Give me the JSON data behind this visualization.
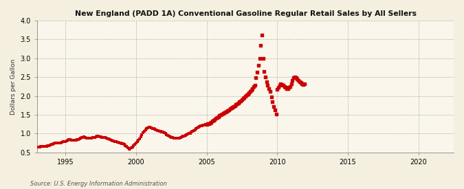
{
  "title": "New England (PADD 1A) Conventional Gasoline Regular Retail Sales by All Sellers",
  "ylabel": "Dollars per Gallon",
  "source": "Source: U.S. Energy Information Administration",
  "background_color": "#F5EFE0",
  "plot_bg_color": "#FAF6EC",
  "line_color": "#CC0000",
  "marker": "s",
  "marker_size": 2.2,
  "ylim": [
    0.5,
    4.0
  ],
  "yticks": [
    0.5,
    1.0,
    1.5,
    2.0,
    2.5,
    3.0,
    3.5,
    4.0
  ],
  "xlim_start": 1993.0,
  "xlim_end": 2022.5,
  "xticks": [
    1995,
    2000,
    2005,
    2010,
    2015,
    2020
  ],
  "connected_data": [
    [
      1993.08,
      0.637
    ],
    [
      1993.17,
      0.648
    ],
    [
      1993.25,
      0.652
    ],
    [
      1993.33,
      0.655
    ],
    [
      1993.42,
      0.658
    ],
    [
      1993.5,
      0.662
    ],
    [
      1993.58,
      0.66
    ],
    [
      1993.67,
      0.665
    ],
    [
      1993.75,
      0.672
    ],
    [
      1993.83,
      0.682
    ],
    [
      1993.92,
      0.695
    ],
    [
      1994.0,
      0.705
    ],
    [
      1994.08,
      0.718
    ],
    [
      1994.17,
      0.728
    ],
    [
      1994.25,
      0.742
    ],
    [
      1994.33,
      0.752
    ],
    [
      1994.42,
      0.748
    ],
    [
      1994.5,
      0.745
    ],
    [
      1994.58,
      0.748
    ],
    [
      1994.67,
      0.755
    ],
    [
      1994.75,
      0.768
    ],
    [
      1994.83,
      0.778
    ],
    [
      1994.92,
      0.788
    ],
    [
      1995.0,
      0.795
    ],
    [
      1995.08,
      0.808
    ],
    [
      1995.17,
      0.822
    ],
    [
      1995.25,
      0.838
    ],
    [
      1995.33,
      0.842
    ],
    [
      1995.42,
      0.832
    ],
    [
      1995.5,
      0.822
    ],
    [
      1995.58,
      0.818
    ],
    [
      1995.67,
      0.82
    ],
    [
      1995.75,
      0.828
    ],
    [
      1995.83,
      0.838
    ],
    [
      1995.92,
      0.848
    ],
    [
      1996.0,
      0.858
    ],
    [
      1996.08,
      0.872
    ],
    [
      1996.17,
      0.888
    ],
    [
      1996.25,
      0.902
    ],
    [
      1996.33,
      0.908
    ],
    [
      1996.42,
      0.898
    ],
    [
      1996.5,
      0.885
    ],
    [
      1996.58,
      0.878
    ],
    [
      1996.67,
      0.875
    ],
    [
      1996.75,
      0.878
    ],
    [
      1996.83,
      0.885
    ],
    [
      1996.92,
      0.892
    ],
    [
      1997.0,
      0.898
    ],
    [
      1997.08,
      0.905
    ],
    [
      1997.17,
      0.915
    ],
    [
      1997.25,
      0.928
    ],
    [
      1997.33,
      0.932
    ],
    [
      1997.42,
      0.922
    ],
    [
      1997.5,
      0.912
    ],
    [
      1997.58,
      0.905
    ],
    [
      1997.67,
      0.9
    ],
    [
      1997.75,
      0.895
    ],
    [
      1997.83,
      0.888
    ],
    [
      1997.92,
      0.878
    ],
    [
      1998.0,
      0.868
    ],
    [
      1998.08,
      0.852
    ],
    [
      1998.17,
      0.835
    ],
    [
      1998.25,
      0.822
    ],
    [
      1998.33,
      0.81
    ],
    [
      1998.42,
      0.798
    ],
    [
      1998.5,
      0.785
    ],
    [
      1998.58,
      0.778
    ],
    [
      1998.67,
      0.772
    ],
    [
      1998.75,
      0.765
    ],
    [
      1998.83,
      0.758
    ],
    [
      1998.92,
      0.748
    ],
    [
      1999.0,
      0.738
    ],
    [
      1999.08,
      0.725
    ],
    [
      1999.17,
      0.708
    ],
    [
      1999.25,
      0.682
    ],
    [
      1999.33,
      0.652
    ],
    [
      1999.42,
      0.618
    ],
    [
      1999.5,
      0.595
    ],
    [
      1999.58,
      0.6
    ],
    [
      1999.67,
      0.622
    ],
    [
      1999.75,
      0.648
    ],
    [
      1999.83,
      0.678
    ],
    [
      1999.92,
      0.712
    ],
    [
      2000.0,
      0.748
    ],
    [
      2000.08,
      0.785
    ],
    [
      2000.17,
      0.825
    ],
    [
      2000.25,
      0.868
    ],
    [
      2000.33,
      0.912
    ],
    [
      2000.42,
      0.962
    ],
    [
      2000.5,
      1.018
    ],
    [
      2000.58,
      1.062
    ],
    [
      2000.67,
      1.098
    ],
    [
      2000.75,
      1.128
    ],
    [
      2000.83,
      1.15
    ],
    [
      2000.92,
      1.165
    ],
    [
      2001.0,
      1.172
    ],
    [
      2001.08,
      1.158
    ],
    [
      2001.17,
      1.142
    ],
    [
      2001.25,
      1.125
    ],
    [
      2001.33,
      1.108
    ],
    [
      2001.42,
      1.095
    ],
    [
      2001.5,
      1.082
    ],
    [
      2001.58,
      1.072
    ],
    [
      2001.67,
      1.065
    ],
    [
      2001.75,
      1.058
    ],
    [
      2001.83,
      1.05
    ],
    [
      2001.92,
      1.038
    ],
    [
      2002.0,
      1.022
    ],
    [
      2002.08,
      1.002
    ],
    [
      2002.17,
      0.978
    ],
    [
      2002.25,
      0.952
    ],
    [
      2002.33,
      0.928
    ],
    [
      2002.42,
      0.912
    ],
    [
      2002.5,
      0.898
    ],
    [
      2002.58,
      0.888
    ],
    [
      2002.67,
      0.88
    ],
    [
      2002.75,
      0.875
    ],
    [
      2002.83,
      0.872
    ],
    [
      2002.92,
      0.87
    ],
    [
      2003.0,
      0.872
    ],
    [
      2003.08,
      0.88
    ],
    [
      2003.17,
      0.892
    ],
    [
      2003.25,
      0.908
    ],
    [
      2003.33,
      0.925
    ],
    [
      2003.42,
      0.94
    ],
    [
      2003.5,
      0.952
    ],
    [
      2003.58,
      0.965
    ],
    [
      2003.67,
      0.98
    ],
    [
      2003.75,
      0.998
    ],
    [
      2003.83,
      1.015
    ],
    [
      2003.92,
      1.035
    ],
    [
      2004.0,
      1.055
    ],
    [
      2004.08,
      1.078
    ],
    [
      2004.17,
      1.102
    ],
    [
      2004.25,
      1.128
    ],
    [
      2004.33,
      1.152
    ],
    [
      2004.42,
      1.172
    ],
    [
      2004.5,
      1.188
    ],
    [
      2004.58,
      1.202
    ],
    [
      2004.67,
      1.215
    ],
    [
      2004.75,
      1.225
    ],
    [
      2004.83,
      1.232
    ],
    [
      2004.92,
      1.24
    ]
  ],
  "scattered_data": [
    [
      2005.0,
      1.248
    ],
    [
      2005.08,
      1.258
    ],
    [
      2005.17,
      1.27
    ],
    [
      2005.25,
      1.285
    ],
    [
      2005.33,
      1.305
    ],
    [
      2005.42,
      1.328
    ],
    [
      2005.5,
      1.352
    ],
    [
      2005.58,
      1.375
    ],
    [
      2005.67,
      1.4
    ],
    [
      2005.75,
      1.425
    ],
    [
      2005.83,
      1.45
    ],
    [
      2005.92,
      1.475
    ],
    [
      2006.0,
      1.498
    ],
    [
      2006.08,
      1.52
    ],
    [
      2006.17,
      1.54
    ],
    [
      2006.25,
      1.558
    ],
    [
      2006.33,
      1.575
    ],
    [
      2006.42,
      1.592
    ],
    [
      2006.5,
      1.612
    ],
    [
      2006.58,
      1.632
    ],
    [
      2006.67,
      1.655
    ],
    [
      2006.75,
      1.678
    ],
    [
      2006.83,
      1.702
    ],
    [
      2006.92,
      1.725
    ],
    [
      2007.0,
      1.745
    ],
    [
      2007.08,
      1.768
    ],
    [
      2007.17,
      1.79
    ],
    [
      2007.25,
      1.815
    ],
    [
      2007.33,
      1.842
    ],
    [
      2007.42,
      1.87
    ],
    [
      2007.5,
      1.898
    ],
    [
      2007.58,
      1.928
    ],
    [
      2007.67,
      1.958
    ],
    [
      2007.75,
      1.99
    ],
    [
      2007.83,
      2.022
    ],
    [
      2007.92,
      2.055
    ],
    [
      2008.0,
      2.088
    ],
    [
      2008.08,
      2.122
    ],
    [
      2008.17,
      2.158
    ],
    [
      2008.25,
      2.198
    ],
    [
      2008.33,
      2.242
    ],
    [
      2008.42,
      2.29
    ],
    [
      2008.5,
      2.48
    ],
    [
      2008.58,
      2.63
    ],
    [
      2008.67,
      2.82
    ],
    [
      2008.75,
      3.0
    ],
    [
      2008.83,
      3.34
    ],
    [
      2008.92,
      3.62
    ],
    [
      2009.0,
      3.0
    ],
    [
      2009.08,
      2.65
    ],
    [
      2009.17,
      2.5
    ],
    [
      2009.25,
      2.38
    ],
    [
      2009.33,
      2.28
    ],
    [
      2009.42,
      2.2
    ],
    [
      2009.5,
      2.12
    ],
    [
      2009.58,
      1.98
    ],
    [
      2009.67,
      1.85
    ],
    [
      2009.75,
      1.72
    ],
    [
      2009.83,
      1.62
    ],
    [
      2009.92,
      1.52
    ],
    [
      2010.0,
      2.18
    ],
    [
      2010.08,
      2.22
    ],
    [
      2010.17,
      2.28
    ],
    [
      2010.25,
      2.32
    ],
    [
      2010.33,
      2.3
    ],
    [
      2010.42,
      2.28
    ],
    [
      2010.5,
      2.25
    ],
    [
      2010.58,
      2.22
    ],
    [
      2010.67,
      2.2
    ],
    [
      2010.75,
      2.2
    ],
    [
      2010.83,
      2.22
    ],
    [
      2010.92,
      2.25
    ],
    [
      2011.0,
      2.32
    ],
    [
      2011.08,
      2.42
    ],
    [
      2011.17,
      2.48
    ],
    [
      2011.25,
      2.5
    ],
    [
      2011.33,
      2.48
    ],
    [
      2011.42,
      2.45
    ],
    [
      2011.5,
      2.42
    ],
    [
      2011.58,
      2.38
    ],
    [
      2011.67,
      2.35
    ],
    [
      2011.75,
      2.32
    ],
    [
      2011.83,
      2.3
    ],
    [
      2011.92,
      2.32
    ]
  ]
}
